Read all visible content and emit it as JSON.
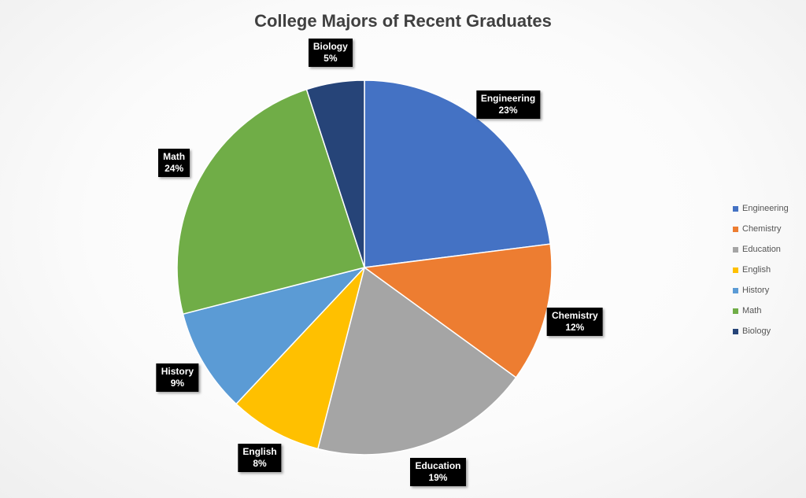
{
  "chart_data": {
    "type": "pie",
    "title": "College Majors of Recent Graduates",
    "categories": [
      "Engineering",
      "Chemistry",
      "Education",
      "English",
      "History",
      "Math",
      "Biology"
    ],
    "values": [
      23,
      12,
      19,
      8,
      9,
      24,
      5
    ],
    "value_labels": [
      "23%",
      "12%",
      "19%",
      "8%",
      "9%",
      "24%",
      "5%"
    ],
    "colors": [
      "#4472C4",
      "#ED7D31",
      "#A5A5A5",
      "#FFC000",
      "#5B9BD5",
      "#70AD47",
      "#264478"
    ],
    "legend_placement": "right",
    "start_angle_deg": 0,
    "direction": "clockwise"
  }
}
